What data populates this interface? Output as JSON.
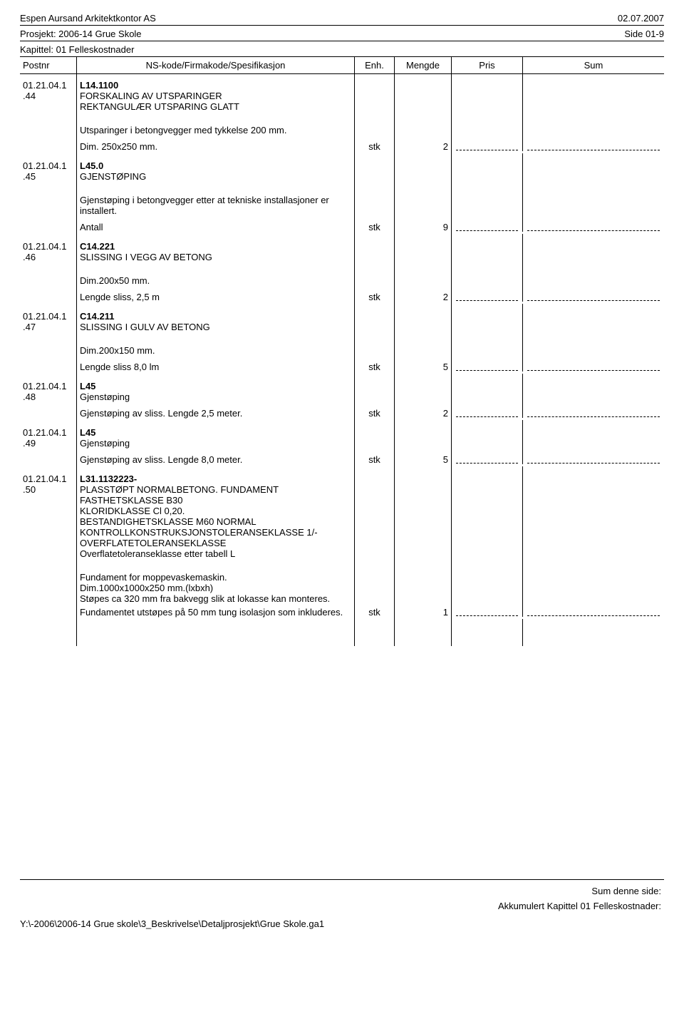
{
  "header": {
    "company": "Espen Aursand Arkitektkontor AS",
    "date": "02.07.2007",
    "project": "Prosjekt: 2006-14 Grue Skole",
    "page": "Side 01-9",
    "chapter": "Kapittel: 01 Felleskostnader"
  },
  "columns": {
    "postnr": "Postnr",
    "spec": "NS-kode/Firmakode/Spesifikasjon",
    "enh": "Enh.",
    "mengde": "Mengde",
    "pris": "Pris",
    "sum": "Sum"
  },
  "items": [
    {
      "postnr": "01.21.04.1.44",
      "code": "L14.1100",
      "title": "FORSKALING AV UTSPARINGER\nREKTANGULÆR UTSPARING GLATT",
      "body": "Utsparinger i betongvegger med tykkelse 200 mm.",
      "measure_label": "Dim. 250x250 mm.",
      "enh": "stk",
      "mengde": "2"
    },
    {
      "postnr": "01.21.04.1.45",
      "code": "L45.0",
      "title": "GJENSTØPING",
      "body": "Gjenstøping i betongvegger etter at tekniske installasjoner er installert.",
      "measure_label": "Antall",
      "enh": "stk",
      "mengde": "9"
    },
    {
      "postnr": "01.21.04.1.46",
      "code": "C14.221",
      "title": "SLISSING I VEGG AV BETONG",
      "body": "Dim.200x50 mm.",
      "measure_label": "Lengde sliss, 2,5 m",
      "enh": "stk",
      "mengde": "2"
    },
    {
      "postnr": "01.21.04.1.47",
      "code": "C14.211",
      "title": "SLISSING I GULV AV BETONG",
      "body": "Dim.200x150 mm.",
      "measure_label": "Lengde sliss 8,0 lm",
      "enh": "stk",
      "mengde": "5"
    },
    {
      "postnr": "01.21.04.1.48",
      "code": "L45",
      "title": "Gjenstøping",
      "measure_label": "Gjenstøping av sliss. Lengde 2,5 meter.",
      "enh": "stk",
      "mengde": "2"
    },
    {
      "postnr": "01.21.04.1.49",
      "code": "L45",
      "title": "Gjenstøping",
      "measure_label": "Gjenstøping av sliss. Lengde 8,0 meter.",
      "enh": "stk",
      "mengde": "5"
    },
    {
      "postnr": "01.21.04.1.50",
      "code": "L31.1132223-",
      "title": "PLASSTØPT NORMALBETONG. FUNDAMENT\nFASTHETSKLASSE B30\nKLORIDKLASSE Cl 0,20.\nBESTANDIGHETSKLASSE M60 NORMAL\nKONTROLLKONSTRUKSJONSTOLERANSEKLASSE 1/-OVERFLATETOLERANSEKLASSE\nOverflatetoleranseklasse etter tabell L",
      "body": "Fundament for moppevaskemaskin.\nDim.1000x1000x250 mm.(lxbxh)\nStøpes ca 320 mm fra bakvegg slik at lokasse kan monteres.\nFundamentet utstøpes på 50 mm tung isolasjon som inkluderes.",
      "enh": "stk",
      "mengde": "1"
    }
  ],
  "footer": {
    "sum_page": "Sum denne side:",
    "akk": "Akkumulert Kapittel 01 Felleskostnader:",
    "path": "Y:\\-2006\\2006-14 Grue skole\\3_Beskrivelse\\Detaljprosjekt\\Grue Skole.ga1"
  }
}
